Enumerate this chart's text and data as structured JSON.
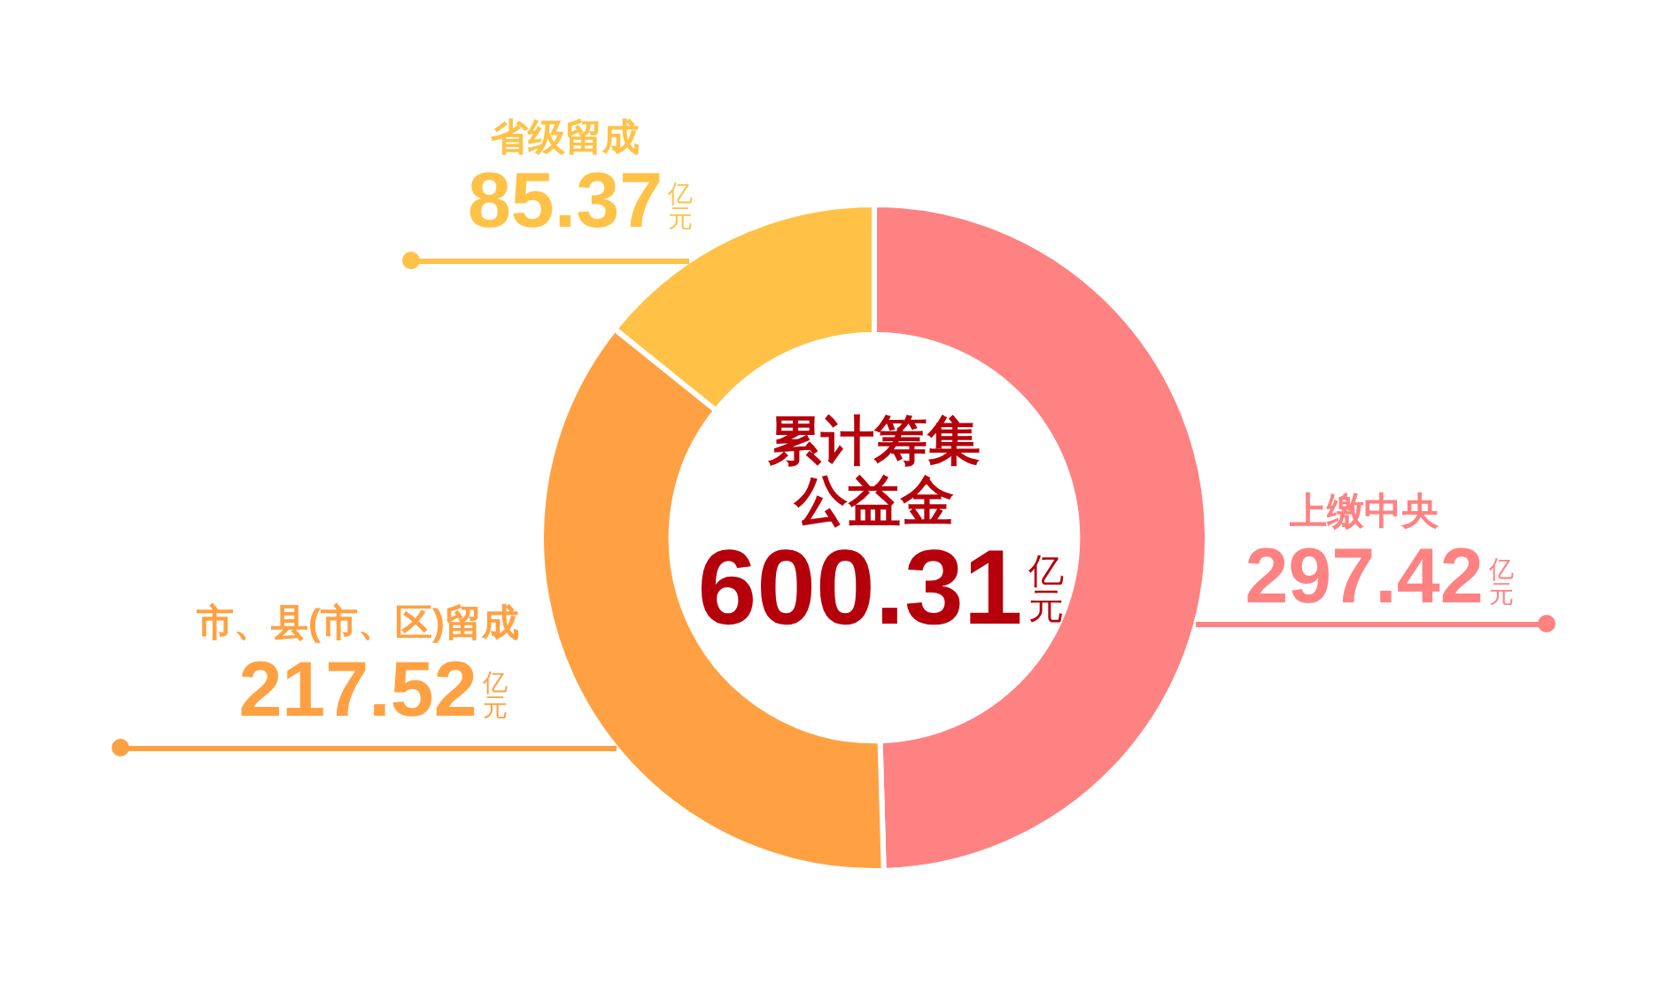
{
  "chart_data": {
    "type": "donut",
    "title": "累计筹集公益金",
    "categories": [
      "上缴中央",
      "市、县(市、区)留成",
      "省级留成"
    ],
    "values": [
      297.42,
      217.52,
      85.37
    ],
    "colors": [
      "#ff8282",
      "#ffa143",
      "#ffc247"
    ],
    "value_labels": [
      "297.42亿元",
      "217.52亿元",
      "85.37亿元"
    ],
    "annotations": [
      "600.31亿元"
    ]
  }
}
